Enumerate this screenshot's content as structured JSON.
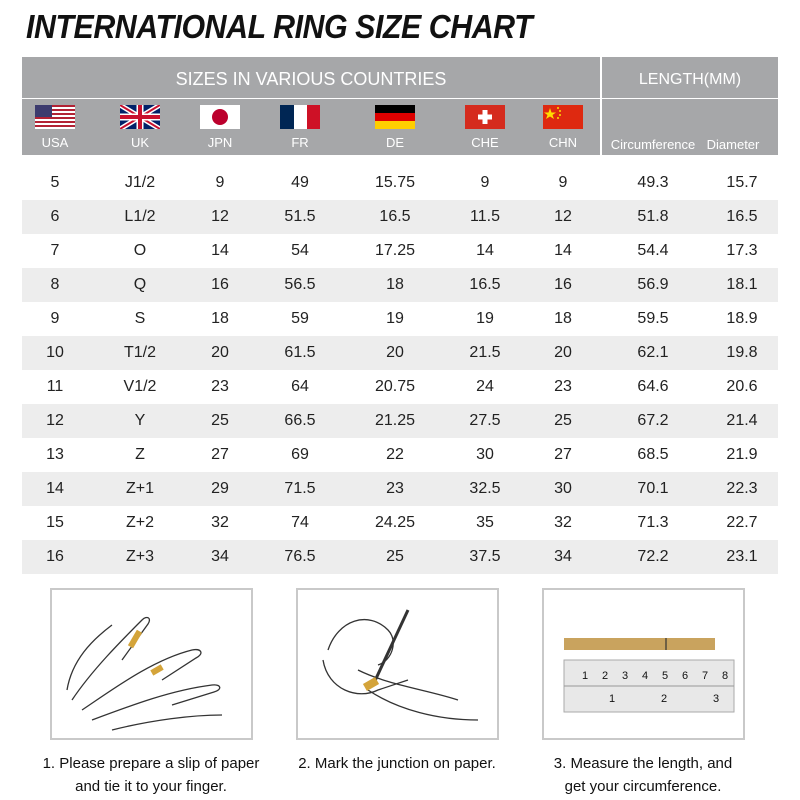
{
  "title": "INTERNATIONAL RING SIZE CHART",
  "header": {
    "sizes_label": "SIZES IN VARIOUS COUNTRIES",
    "length_label": "LENGTH(MM)",
    "countries": [
      {
        "code": "USA",
        "flag": "usa-flag"
      },
      {
        "code": "UK",
        "flag": "uk-flag"
      },
      {
        "code": "JPN",
        "flag": "japan-flag"
      },
      {
        "code": "FR",
        "flag": "france-flag"
      },
      {
        "code": "DE",
        "flag": "germany-flag"
      },
      {
        "code": "CHE",
        "flag": "switzerland-flag"
      },
      {
        "code": "CHN",
        "flag": "china-flag"
      }
    ],
    "circumference": "Circumference",
    "diameter": "Diameter"
  },
  "rows": [
    [
      "5",
      "J1/2",
      "9",
      "49",
      "15.75",
      "9",
      "9",
      "49.3",
      "15.7"
    ],
    [
      "6",
      "L1/2",
      "12",
      "51.5",
      "16.5",
      "11.5",
      "12",
      "51.8",
      "16.5"
    ],
    [
      "7",
      "O",
      "14",
      "54",
      "17.25",
      "14",
      "14",
      "54.4",
      "17.3"
    ],
    [
      "8",
      "Q",
      "16",
      "56.5",
      "18",
      "16.5",
      "16",
      "56.9",
      "18.1"
    ],
    [
      "9",
      "S",
      "18",
      "59",
      "19",
      "19",
      "18",
      "59.5",
      "18.9"
    ],
    [
      "10",
      "T1/2",
      "20",
      "61.5",
      "20",
      "21.5",
      "20",
      "62.1",
      "19.8"
    ],
    [
      "11",
      "V1/2",
      "23",
      "64",
      "20.75",
      "24",
      "23",
      "64.6",
      "20.6"
    ],
    [
      "12",
      "Y",
      "25",
      "66.5",
      "21.25",
      "27.5",
      "25",
      "67.2",
      "21.4"
    ],
    [
      "13",
      "Z",
      "27",
      "69",
      "22",
      "30",
      "27",
      "68.5",
      "21.9"
    ],
    [
      "14",
      "Z+1",
      "29",
      "71.5",
      "23",
      "32.5",
      "30",
      "70.1",
      "22.3"
    ],
    [
      "15",
      "Z+2",
      "32",
      "74",
      "24.25",
      "35",
      "32",
      "71.3",
      "22.7"
    ],
    [
      "16",
      "Z+3",
      "34",
      "76.5",
      "25",
      "37.5",
      "34",
      "72.2",
      "23.1"
    ]
  ],
  "steps": [
    {
      "line1": "1. Please prepare a slip of paper",
      "line2": "and tie it to your finger."
    },
    {
      "line1": "2. Mark the junction on paper.",
      "line2": ""
    },
    {
      "line1": "3. Measure the length, and",
      "line2": "get your circumference."
    }
  ],
  "ruler": {
    "top": [
      "1",
      "2",
      "3",
      "4",
      "5",
      "6",
      "7",
      "8"
    ],
    "bottom": [
      "1",
      "2",
      "3"
    ]
  }
}
